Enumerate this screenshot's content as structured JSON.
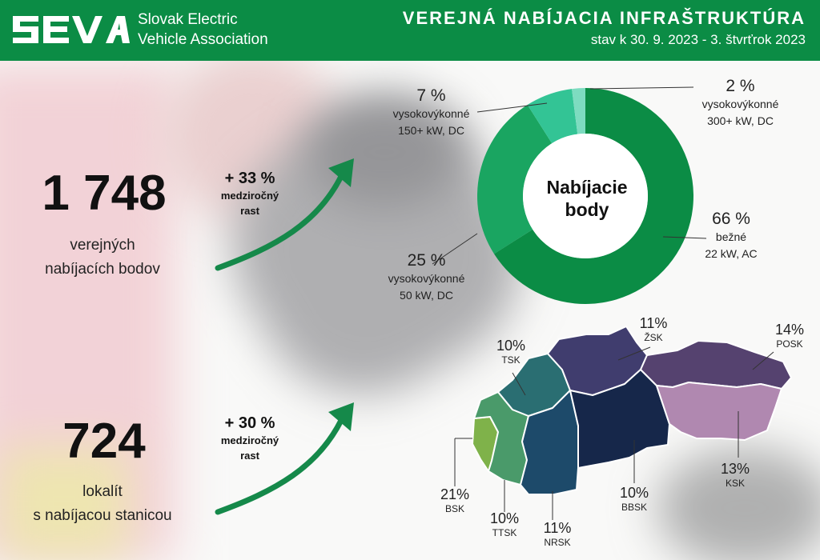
{
  "header": {
    "org_line1": "Slovak Electric",
    "org_line2": "Vehicle Association",
    "title": "VEREJNÁ NABÍJACIA INFRAŠTRUKTÚRA",
    "subtitle": "stav k 30. 9. 2023 - 3. štvrťrok 2023",
    "color": "#0b8c45"
  },
  "stats": {
    "points": {
      "value": "1 748",
      "caption1": "verejných",
      "caption2": "nabíjacích bodov",
      "growth_pct": "+ 33 %",
      "growth_label1": "medziročný",
      "growth_label2": "rast"
    },
    "locations": {
      "value": "724",
      "caption1": "lokalít",
      "caption2": "s nabíjacou stanicou",
      "growth_pct": "+ 30 %",
      "growth_label1": "medziročný",
      "growth_label2": "rast"
    }
  },
  "chart_data": {
    "type": "pie",
    "title": "Nabíjacie body",
    "center_line1": "Nabíjacie",
    "center_line2": "body",
    "slices": [
      {
        "pct_label": "66 %",
        "value": 66,
        "line1": "bežné",
        "line2": "22 kW, AC",
        "color": "#0b8c45"
      },
      {
        "pct_label": "25 %",
        "value": 25,
        "line1": "vysokovýkonné",
        "line2": "50 kW, DC",
        "color": "#1aa561"
      },
      {
        "pct_label": "7 %",
        "value": 7,
        "line1": "vysokovýkonné",
        "line2": "150+ kW, DC",
        "color": "#33c495"
      },
      {
        "pct_label": "2 %",
        "value": 2,
        "line1": "vysokovýkonné",
        "line2": "300+ kW, DC",
        "color": "#7ddcc0"
      }
    ]
  },
  "regions": [
    {
      "code": "BSK",
      "pct": "21%",
      "color": "#7fb24a"
    },
    {
      "code": "TTSK",
      "pct": "10%",
      "color": "#4a9a6a"
    },
    {
      "code": "TSK",
      "pct": "10%",
      "color": "#2a6e72"
    },
    {
      "code": "NRSK",
      "pct": "11%",
      "color": "#1d4a6a"
    },
    {
      "code": "ŽSK",
      "pct": "11%",
      "color": "#403d6e"
    },
    {
      "code": "BBSK",
      "pct": "10%",
      "color": "#16274a"
    },
    {
      "code": "POSK",
      "pct": "14%",
      "color": "#55426f"
    },
    {
      "code": "KSK",
      "pct": "13%",
      "color": "#b088b0"
    }
  ]
}
